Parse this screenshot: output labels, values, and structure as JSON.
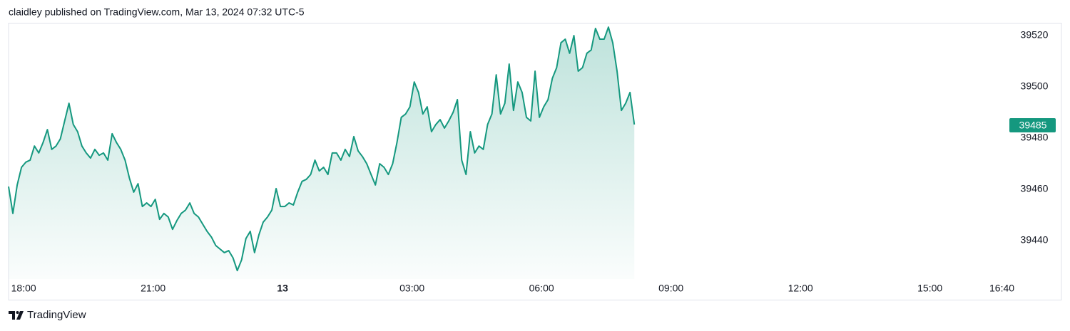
{
  "chart_data": {
    "type": "area",
    "title": "claidley published on TradingView.com, Mar 13, 2024 07:32 UTC-5",
    "source": "TradingView",
    "color": "#15987f",
    "grid": false,
    "x": [
      -0.35,
      -0.25,
      -0.15,
      -0.05,
      0.05,
      0.15,
      0.25,
      0.35,
      0.45,
      0.55,
      0.65,
      0.75,
      0.85,
      0.95,
      1.05,
      1.15,
      1.25,
      1.35,
      1.45,
      1.55,
      1.65,
      1.75,
      1.85,
      1.95,
      2.05,
      2.15,
      2.25,
      2.35,
      2.45,
      2.55,
      2.65,
      2.75,
      2.85,
      2.95,
      3.05,
      3.15,
      3.25,
      3.35,
      3.45,
      3.55,
      3.65,
      3.75,
      3.85,
      3.95,
      4.05,
      4.15,
      4.25,
      4.35,
      4.45,
      4.55,
      4.65,
      4.75,
      4.85,
      4.95,
      5.05,
      5.15,
      5.25,
      5.35,
      5.45,
      5.55,
      5.65,
      5.75,
      5.85,
      5.95,
      6.05,
      6.15,
      6.25,
      6.35,
      6.45,
      6.55,
      6.65,
      6.75,
      6.85,
      6.95,
      7.05,
      7.15,
      7.25,
      7.35,
      7.45,
      7.55,
      7.65,
      7.75,
      7.85,
      7.95,
      8.05,
      8.15,
      8.25,
      8.35,
      8.45,
      8.55,
      8.65,
      8.75,
      8.85,
      8.95,
      9.05,
      9.15,
      9.25,
      9.35,
      9.45,
      9.55,
      9.65,
      9.75,
      9.85,
      9.95,
      10.05,
      10.15,
      10.25,
      10.35,
      10.45,
      10.55,
      10.65,
      10.75,
      10.85,
      10.95,
      11.05,
      11.15,
      11.25,
      11.35,
      11.45,
      11.55,
      11.65,
      11.75,
      11.85,
      11.95,
      12.05,
      12.15,
      12.25,
      12.35,
      12.45,
      12.55,
      12.65,
      12.75,
      12.85,
      12.95,
      13.05,
      13.15,
      13.25,
      13.35,
      13.45,
      13.55,
      13.65,
      13.75,
      13.85,
      13.95,
      14.05,
      14.15
    ],
    "values": [
      39461.1,
      39450.6,
      39461.7,
      39468.6,
      39470.6,
      39471.4,
      39476.9,
      39474.2,
      39478.3,
      39483.3,
      39475.6,
      39476.9,
      39479.7,
      39486.7,
      39493.6,
      39485.3,
      39482.5,
      39476.9,
      39474.2,
      39472.2,
      39475.6,
      39473.3,
      39474.2,
      39471.4,
      39481.7,
      39478.3,
      39475.6,
      39471.4,
      39464.4,
      39458.9,
      39462.2,
      39453.3,
      39454.7,
      39453.3,
      39456.1,
      39448.3,
      39450.6,
      39449.2,
      39444.4,
      39447.8,
      39450.6,
      39451.9,
      39454.7,
      39450.6,
      39449.2,
      39446.4,
      39443.6,
      39441.4,
      39438.1,
      39436.7,
      39435.3,
      39436.1,
      39433.3,
      39428.3,
      39432.5,
      39440.8,
      39443.6,
      39435.3,
      39442.2,
      39447.2,
      39449.2,
      39451.9,
      39460.3,
      39453.3,
      39453.3,
      39454.7,
      39453.9,
      39458.9,
      39463.1,
      39463.9,
      39465.8,
      39471.4,
      39467.2,
      39468.6,
      39465.8,
      39474.2,
      39474.2,
      39471.4,
      39475.6,
      39472.8,
      39480.6,
      39475.0,
      39472.8,
      39470.0,
      39465.8,
      39461.7,
      39470.0,
      39468.6,
      39465.8,
      39470.0,
      39478.3,
      39488.1,
      39489.4,
      39492.2,
      39501.9,
      39497.8,
      39489.4,
      39492.2,
      39482.5,
      39485.3,
      39487.2,
      39483.9,
      39486.7,
      39490.0,
      39495.0,
      39471.4,
      39465.8,
      39482.5,
      39474.2,
      39476.9,
      39475.6,
      39485.3,
      39489.4,
      39504.7,
      39489.4,
      39493.6,
      39508.9,
      39490.8,
      39501.9,
      39497.8,
      39488.1,
      39486.7,
      39506.1,
      39488.1,
      39492.2,
      39495.0,
      39503.3,
      39507.5,
      39517.2,
      39518.6,
      39513.1,
      39520.0,
      39506.1,
      39507.5,
      39513.1,
      39514.4,
      39522.8,
      39518.6,
      39518.6,
      39523.3,
      39517.2,
      39506.1,
      39490.8,
      39493.6,
      39497.8,
      39485.3
    ],
    "last_price": 39485,
    "ylim": [
      39425,
      39525
    ],
    "yticks": [
      39440,
      39460,
      39480,
      39500,
      39520
    ],
    "xlim": [
      -0.35,
      22.84
    ],
    "xticks": [
      {
        "value": 0,
        "label": "18:00"
      },
      {
        "value": 3,
        "label": "21:00"
      },
      {
        "value": 6,
        "label": "13"
      },
      {
        "value": 9,
        "label": "03:00"
      },
      {
        "value": 12,
        "label": "06:00"
      },
      {
        "value": 15,
        "label": "09:00"
      },
      {
        "value": 18,
        "label": "12:00"
      },
      {
        "value": 21,
        "label": "15:00"
      },
      {
        "value": 22.667,
        "label": "16:40"
      }
    ]
  }
}
